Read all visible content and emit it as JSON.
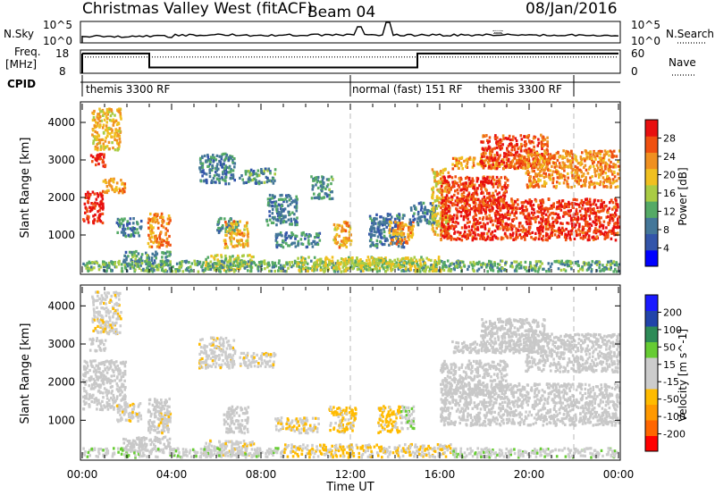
{
  "header": {
    "station": "Christmas Valley West (fitACF)",
    "beam": "Beam 04",
    "date": "08/Jan/2016"
  },
  "strip_labels": {
    "nsky": "N.Sky",
    "freq_line1": "Freq.",
    "freq_line2": "[MHz]",
    "cpid": "CPID",
    "nsearch": "N.Search",
    "nave": "Nave"
  },
  "nsky_ticks": {
    "top": "10^5",
    "bottom": "10^0"
  },
  "freq_ticks": {
    "top": "18",
    "bottom": "8"
  },
  "nave_ticks": {
    "top": "60",
    "bottom": "0"
  },
  "nsearch_ticks": {
    "top": "10^5",
    "bottom": "10^0"
  },
  "cpid_segments": [
    {
      "label": "themis 3300 RF",
      "start_hour": 0
    },
    {
      "label": "normal (fast) 151 RF",
      "start_hour": 12
    },
    {
      "label": "themis 3300 RF",
      "start_hour": 22
    }
  ],
  "colors": {
    "power_scale": [
      "#0000ff",
      "#3355aa",
      "#447799",
      "#55aa66",
      "#aacc44",
      "#f0c020",
      "#f09020",
      "#f05010",
      "#e81010"
    ],
    "velocity_scale": [
      "#ff0000",
      "#ff6600",
      "#ff9900",
      "#ffbb00",
      "#cccccc",
      "#cccccc",
      "#66cc33",
      "#2e8b57",
      "#2244aa",
      "#1a1aff"
    ],
    "ground_scatter": "#c8c8c8",
    "dashed_line": "#b8b8b8"
  },
  "chart_data": [
    {
      "type": "heatmap",
      "name": "power",
      "xlabel": "Time UT",
      "ylabel": "Slant Range [km]",
      "ylim": [
        0,
        4500
      ],
      "xlim_hours": [
        0,
        24
      ],
      "x_ticks": [
        "00:00",
        "04:00",
        "08:00",
        "12:00",
        "16:00",
        "20:00",
        "00:00"
      ],
      "y_ticks": [
        1000,
        2000,
        3000,
        4000
      ],
      "colorbar": {
        "label": "Power [dB]",
        "ticks": [
          "4",
          "8",
          "12",
          "16",
          "20",
          "24",
          "28"
        ],
        "min": 0,
        "max": 30
      },
      "patches": [
        {
          "t0": 0.0,
          "t1": 0.9,
          "r0": 1350,
          "r1": 2200,
          "level": 28
        },
        {
          "t0": 0.3,
          "t1": 1.0,
          "r0": 2850,
          "r1": 3200,
          "level": 27
        },
        {
          "t0": 0.4,
          "t1": 1.7,
          "r0": 3300,
          "r1": 4400,
          "level": 19
        },
        {
          "t0": 0.9,
          "t1": 1.9,
          "r0": 2150,
          "r1": 2550,
          "level": 22
        },
        {
          "t0": 1.5,
          "t1": 2.6,
          "r0": 1000,
          "r1": 1500,
          "level": 9
        },
        {
          "t0": 1.8,
          "t1": 3.9,
          "r0": 200,
          "r1": 600,
          "level": 10
        },
        {
          "t0": 2.9,
          "t1": 3.9,
          "r0": 700,
          "r1": 1600,
          "level": 22
        },
        {
          "t0": 5.2,
          "t1": 6.8,
          "r0": 2400,
          "r1": 3200,
          "level": 9
        },
        {
          "t0": 6.0,
          "t1": 7.0,
          "r0": 1100,
          "r1": 1500,
          "level": 9
        },
        {
          "t0": 6.3,
          "t1": 7.4,
          "r0": 700,
          "r1": 1400,
          "level": 20
        },
        {
          "t0": 5.4,
          "t1": 7.7,
          "r0": 100,
          "r1": 500,
          "level": 16
        },
        {
          "t0": 7.0,
          "t1": 8.6,
          "r0": 2400,
          "r1": 2800,
          "level": 10
        },
        {
          "t0": 8.2,
          "t1": 9.6,
          "r0": 1300,
          "r1": 2100,
          "level": 9
        },
        {
          "t0": 8.6,
          "t1": 10.6,
          "r0": 700,
          "r1": 1100,
          "level": 9
        },
        {
          "t0": 10.2,
          "t1": 11.2,
          "r0": 2000,
          "r1": 2600,
          "level": 10
        },
        {
          "t0": 11.2,
          "t1": 12.0,
          "r0": 700,
          "r1": 1400,
          "level": 20
        },
        {
          "t0": 12.8,
          "t1": 14.4,
          "r0": 700,
          "r1": 1600,
          "level": 8
        },
        {
          "t0": 13.7,
          "t1": 14.8,
          "r0": 800,
          "r1": 1400,
          "level": 21
        },
        {
          "t0": 14.6,
          "t1": 15.8,
          "r0": 1300,
          "r1": 1900,
          "level": 8
        },
        {
          "t0": 15.6,
          "t1": 16.4,
          "r0": 1000,
          "r1": 2800,
          "level": 18
        },
        {
          "t0": 16.0,
          "t1": 24.0,
          "r0": 900,
          "r1": 2000,
          "level": 27
        },
        {
          "t0": 16.0,
          "t1": 19.0,
          "r0": 1700,
          "r1": 2600,
          "level": 26
        },
        {
          "t0": 16.5,
          "t1": 19.8,
          "r0": 2800,
          "r1": 3100,
          "level": 21
        },
        {
          "t0": 17.8,
          "t1": 20.8,
          "r0": 2800,
          "r1": 3700,
          "level": 26
        },
        {
          "t0": 19.8,
          "t1": 24.0,
          "r0": 2300,
          "r1": 3300,
          "level": 22
        },
        {
          "t0": 0.0,
          "t1": 24.0,
          "r0": 60,
          "r1": 350,
          "level": 12
        },
        {
          "t0": 9.5,
          "t1": 16.0,
          "r0": 60,
          "r1": 450,
          "level": 16
        }
      ]
    },
    {
      "type": "heatmap",
      "name": "velocity",
      "xlabel": "Time UT",
      "ylabel": "Slant Range [km]",
      "ylim": [
        0,
        4500
      ],
      "xlim_hours": [
        0,
        24
      ],
      "x_ticks": [
        "00:00",
        "04:00",
        "08:00",
        "12:00",
        "16:00",
        "20:00",
        "00:00"
      ],
      "y_ticks": [
        1000,
        2000,
        3000,
        4000
      ],
      "colorbar": {
        "label": "Velocity [m s^-1]",
        "ticks": [
          "-200",
          "-100",
          "-50",
          "-15",
          "15",
          "50",
          "100",
          "200"
        ],
        "min": -250,
        "max": 250
      },
      "patches": [
        {
          "t0": 0.0,
          "t1": 1.9,
          "r0": 1300,
          "r1": 2600,
          "level": 0,
          "gs": true
        },
        {
          "t0": 0.3,
          "t1": 1.0,
          "r0": 2850,
          "r1": 3200,
          "level": 0,
          "gs": true
        },
        {
          "t0": 0.4,
          "t1": 1.7,
          "r0": 3300,
          "r1": 4400,
          "level": -30
        },
        {
          "t0": 1.5,
          "t1": 2.6,
          "r0": 1000,
          "r1": 1500,
          "level": -30
        },
        {
          "t0": 2.9,
          "t1": 3.9,
          "r0": 700,
          "r1": 1600,
          "level": 0,
          "gs": true
        },
        {
          "t0": 3.3,
          "t1": 3.9,
          "r0": 700,
          "r1": 1300,
          "level": -40
        },
        {
          "t0": 1.8,
          "t1": 3.9,
          "r0": 200,
          "r1": 600,
          "level": 0,
          "gs": true
        },
        {
          "t0": 5.2,
          "t1": 6.8,
          "r0": 2400,
          "r1": 3200,
          "level": -30
        },
        {
          "t0": 6.3,
          "t1": 7.4,
          "r0": 700,
          "r1": 1400,
          "level": 0,
          "gs": true
        },
        {
          "t0": 5.4,
          "t1": 7.7,
          "r0": 100,
          "r1": 500,
          "level": -30
        },
        {
          "t0": 7.0,
          "t1": 8.6,
          "r0": 2400,
          "r1": 2800,
          "level": -30
        },
        {
          "t0": 8.6,
          "t1": 10.6,
          "r0": 700,
          "r1": 1100,
          "level": -40
        },
        {
          "t0": 11.0,
          "t1": 12.2,
          "r0": 700,
          "r1": 1400,
          "level": -60
        },
        {
          "t0": 13.2,
          "t1": 14.2,
          "r0": 700,
          "r1": 1400,
          "level": -70
        },
        {
          "t0": 14.2,
          "t1": 14.8,
          "r0": 800,
          "r1": 1400,
          "level": 40
        },
        {
          "t0": 16.0,
          "t1": 24.0,
          "r0": 900,
          "r1": 2000,
          "level": 0,
          "gs": true
        },
        {
          "t0": 16.0,
          "t1": 19.0,
          "r0": 1700,
          "r1": 2600,
          "level": 0,
          "gs": true
        },
        {
          "t0": 16.5,
          "t1": 19.8,
          "r0": 2800,
          "r1": 3100,
          "level": 0,
          "gs": true
        },
        {
          "t0": 17.8,
          "t1": 20.8,
          "r0": 2800,
          "r1": 3700,
          "level": 0,
          "gs": true
        },
        {
          "t0": 19.8,
          "t1": 24.0,
          "r0": 2300,
          "r1": 3300,
          "level": 0,
          "gs": true
        },
        {
          "t0": 0.0,
          "t1": 9.0,
          "r0": 60,
          "r1": 300,
          "level": 30
        },
        {
          "t0": 9.0,
          "t1": 16.5,
          "r0": 60,
          "r1": 400,
          "level": -50
        },
        {
          "t0": 16.5,
          "t1": 24.0,
          "r0": 60,
          "r1": 300,
          "level": 30
        }
      ]
    }
  ],
  "frequency_mhz": [
    {
      "t0": 0.0,
      "t1": 3.0,
      "value": 16.5
    },
    {
      "t0": 3.0,
      "t1": 15.0,
      "value": 10.5
    },
    {
      "t0": 15.0,
      "t1": 24.0,
      "value": 16.5
    }
  ],
  "nave_level": 42
}
